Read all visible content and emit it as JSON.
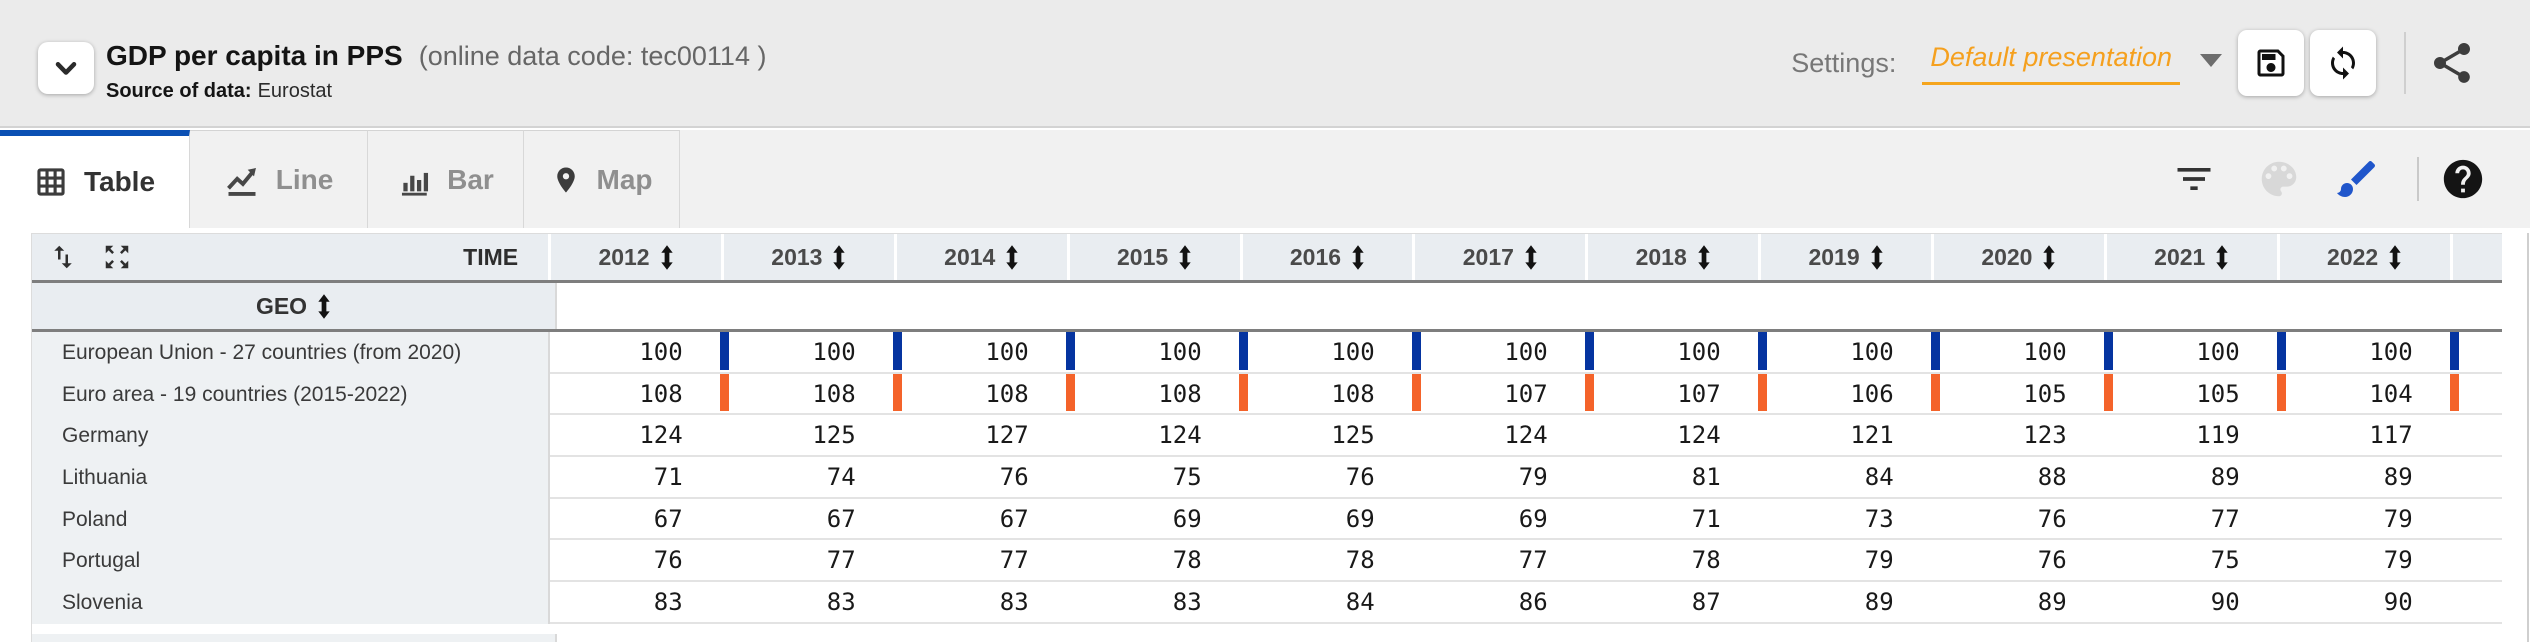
{
  "header": {
    "title": "GDP per capita in PPS",
    "data_code": "(online data code: tec00114 )",
    "source_label": "Source of data:",
    "source_value": "Eurostat",
    "settings_label": "Settings:",
    "settings_value": "Default presentation"
  },
  "tabs": {
    "table": "Table",
    "line": "Line",
    "bar": "Bar",
    "map": "Map"
  },
  "table": {
    "time_label": "TIME",
    "geo_label": "GEO",
    "years": [
      "2012",
      "2013",
      "2014",
      "2015",
      "2016",
      "2017",
      "2018",
      "2019",
      "2020",
      "2021",
      "2022"
    ],
    "rows": [
      {
        "geo": "European Union - 27 countries (from 2020)",
        "values": [
          100,
          100,
          100,
          100,
          100,
          100,
          100,
          100,
          100,
          100,
          100
        ],
        "highlight": "#0534a0"
      },
      {
        "geo": "Euro area - 19 countries  (2015-2022)",
        "values": [
          108,
          108,
          108,
          108,
          108,
          107,
          107,
          106,
          105,
          105,
          104
        ],
        "highlight": "#f4632a"
      },
      {
        "geo": "Germany",
        "values": [
          124,
          125,
          127,
          124,
          125,
          124,
          124,
          121,
          123,
          119,
          117
        ],
        "highlight": null
      },
      {
        "geo": "Lithuania",
        "values": [
          71,
          74,
          76,
          75,
          76,
          79,
          81,
          84,
          88,
          89,
          89
        ],
        "highlight": null
      },
      {
        "geo": "Poland",
        "values": [
          67,
          67,
          67,
          69,
          69,
          69,
          71,
          73,
          76,
          77,
          79
        ],
        "highlight": null
      },
      {
        "geo": "Portugal",
        "values": [
          76,
          77,
          77,
          78,
          78,
          77,
          78,
          79,
          76,
          75,
          79
        ],
        "highlight": null
      },
      {
        "geo": "Slovenia",
        "values": [
          83,
          83,
          83,
          83,
          84,
          86,
          87,
          89,
          89,
          90,
          90
        ],
        "highlight": null
      }
    ]
  },
  "colors": {
    "accent_blue": "#0b50b4",
    "brush_blue": "#2056cb",
    "settings_orange": "#f5a01e",
    "eu_highlight_bar": "#0534a0",
    "euro_area_highlight_bar": "#f4632a",
    "header_cell_bg": "#e9edf1",
    "geo_column_bg": "#eef1f3"
  }
}
